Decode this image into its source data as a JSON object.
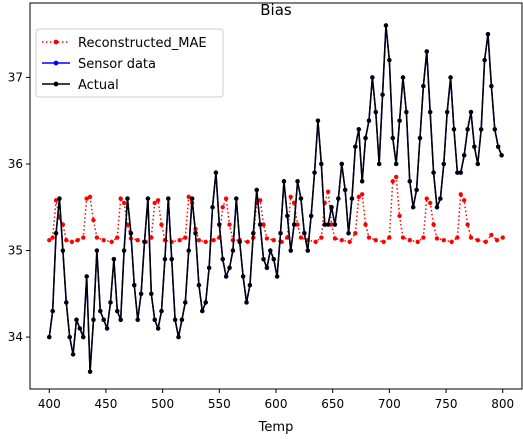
{
  "chart_data": {
    "type": "line",
    "title": "Bias",
    "xlabel": "Temp",
    "ylabel": "",
    "xlim": [
      383,
      817
    ],
    "ylim": [
      33.4,
      37.86
    ],
    "x_ticks": [
      400,
      450,
      500,
      550,
      600,
      650,
      700,
      750,
      800
    ],
    "y_ticks": [
      34,
      35,
      36,
      37
    ],
    "x_tick_labels": [
      "400",
      "450",
      "500",
      "550",
      "600",
      "650",
      "700",
      "750",
      "800"
    ],
    "y_tick_labels": [
      "34",
      "35",
      "36",
      "37"
    ],
    "grid": false,
    "legend": {
      "placement": "top-left"
    },
    "series": [
      {
        "name": "Reconstructed_MAE",
        "color": "#ff0000",
        "style": "dotted",
        "marker": "dot",
        "x": [
          400,
          403,
          406,
          409,
          412,
          415,
          420,
          425,
          430,
          433,
          436,
          439,
          442,
          448,
          455,
          460,
          463,
          466,
          469,
          472,
          478,
          485,
          490,
          493,
          496,
          499,
          502,
          508,
          515,
          520,
          523,
          526,
          529,
          532,
          538,
          545,
          550,
          553,
          556,
          559,
          562,
          568,
          575,
          580,
          583,
          586,
          589,
          592,
          598,
          605,
          610,
          613,
          616,
          619,
          622,
          628,
          635,
          640,
          643,
          646,
          649,
          652,
          658,
          665,
          670,
          673,
          676,
          679,
          682,
          688,
          695,
          700,
          703,
          706,
          709,
          712,
          718,
          725,
          730,
          733,
          736,
          739,
          742,
          748,
          755,
          760,
          763,
          766,
          769,
          772,
          778,
          785,
          790,
          795,
          800
        ],
        "y": [
          35.12,
          35.15,
          35.58,
          35.38,
          35.3,
          35.12,
          35.1,
          35.12,
          35.15,
          35.6,
          35.62,
          35.35,
          35.15,
          35.12,
          35.1,
          35.15,
          35.6,
          35.55,
          35.3,
          35.14,
          35.12,
          35.1,
          35.15,
          35.55,
          35.58,
          35.3,
          35.12,
          35.1,
          35.12,
          35.15,
          35.62,
          35.55,
          35.25,
          35.12,
          35.1,
          35.12,
          35.15,
          35.5,
          35.6,
          35.3,
          35.12,
          35.12,
          35.1,
          35.15,
          35.55,
          35.58,
          35.3,
          35.14,
          35.12,
          35.1,
          35.15,
          35.62,
          35.55,
          35.3,
          35.15,
          35.12,
          35.1,
          35.15,
          35.55,
          35.68,
          35.3,
          35.14,
          35.12,
          35.1,
          35.2,
          35.62,
          35.65,
          35.3,
          35.15,
          35.12,
          35.1,
          35.15,
          35.8,
          35.85,
          35.4,
          35.15,
          35.12,
          35.1,
          35.15,
          35.6,
          35.55,
          35.3,
          35.14,
          35.12,
          35.1,
          35.15,
          35.65,
          35.58,
          35.3,
          35.15,
          35.12,
          35.1,
          35.18,
          35.12,
          35.15
        ]
      },
      {
        "name": "Sensor data",
        "color": "#0000ff",
        "style": "solid",
        "marker": "dot",
        "x": [
          400,
          403,
          406,
          409,
          412,
          415,
          418,
          421,
          424,
          427,
          430,
          433,
          436,
          439,
          442,
          445,
          448,
          451,
          454,
          457,
          460,
          463,
          466,
          469,
          472,
          475,
          478,
          481,
          484,
          487,
          490,
          493,
          496,
          499,
          502,
          505,
          508,
          511,
          514,
          517,
          520,
          523,
          526,
          529,
          532,
          535,
          538,
          541,
          544,
          547,
          550,
          553,
          556,
          559,
          562,
          565,
          568,
          571,
          574,
          577,
          580,
          583,
          586,
          589,
          592,
          595,
          598,
          601,
          604,
          607,
          610,
          613,
          616,
          619,
          622,
          625,
          628,
          631,
          634,
          637,
          640,
          643,
          646,
          649,
          652,
          655,
          658,
          661,
          664,
          667,
          670,
          673,
          676,
          679,
          682,
          685,
          688,
          691,
          694,
          697,
          700,
          703,
          706,
          709,
          712,
          715,
          718,
          721,
          724,
          727,
          730,
          733,
          736,
          739,
          742,
          745,
          748,
          751,
          754,
          757,
          760,
          763,
          766,
          769,
          772,
          775,
          778,
          781,
          784,
          787,
          790,
          793,
          796,
          799
        ],
        "y": [
          34.0,
          34.3,
          35.2,
          35.6,
          35.0,
          34.4,
          34.0,
          33.8,
          34.2,
          34.1,
          34.0,
          34.7,
          33.6,
          34.2,
          35.0,
          34.3,
          34.2,
          34.1,
          34.4,
          34.9,
          34.3,
          34.2,
          35.0,
          35.6,
          35.2,
          34.6,
          34.2,
          34.5,
          35.1,
          35.6,
          34.5,
          34.2,
          34.1,
          34.3,
          34.9,
          35.6,
          34.9,
          34.2,
          34.0,
          34.2,
          34.4,
          35.0,
          35.6,
          35.2,
          34.6,
          34.3,
          34.4,
          34.8,
          35.5,
          35.9,
          35.3,
          34.9,
          34.7,
          34.8,
          35.0,
          35.6,
          35.1,
          34.7,
          34.4,
          34.6,
          35.2,
          35.7,
          35.3,
          34.9,
          34.8,
          35.0,
          34.9,
          34.7,
          35.2,
          35.8,
          35.4,
          35.0,
          35.3,
          35.8,
          35.6,
          35.2,
          35.0,
          35.4,
          35.9,
          36.5,
          36.0,
          35.3,
          35.3,
          35.5,
          35.3,
          35.6,
          36.0,
          35.7,
          35.2,
          35.6,
          36.2,
          36.4,
          35.8,
          36.3,
          36.5,
          37.0,
          36.6,
          36.0,
          36.8,
          37.6,
          37.2,
          36.3,
          36.0,
          36.5,
          37.0,
          36.6,
          35.8,
          35.5,
          35.7,
          36.3,
          36.9,
          37.3,
          36.6,
          35.9,
          35.5,
          35.6,
          36.0,
          36.6,
          37.0,
          36.4,
          35.9,
          35.9,
          36.1,
          36.4,
          36.6,
          36.2,
          36.0,
          36.4,
          37.2,
          37.5,
          36.9,
          36.4,
          36.2,
          36.1
        ]
      },
      {
        "name": "Actual",
        "color": "#000000",
        "style": "solid",
        "marker": "dot",
        "x": [
          400,
          403,
          406,
          409,
          412,
          415,
          418,
          421,
          424,
          427,
          430,
          433,
          436,
          439,
          442,
          445,
          448,
          451,
          454,
          457,
          460,
          463,
          466,
          469,
          472,
          475,
          478,
          481,
          484,
          487,
          490,
          493,
          496,
          499,
          502,
          505,
          508,
          511,
          514,
          517,
          520,
          523,
          526,
          529,
          532,
          535,
          538,
          541,
          544,
          547,
          550,
          553,
          556,
          559,
          562,
          565,
          568,
          571,
          574,
          577,
          580,
          583,
          586,
          589,
          592,
          595,
          598,
          601,
          604,
          607,
          610,
          613,
          616,
          619,
          622,
          625,
          628,
          631,
          634,
          637,
          640,
          643,
          646,
          649,
          652,
          655,
          658,
          661,
          664,
          667,
          670,
          673,
          676,
          679,
          682,
          685,
          688,
          691,
          694,
          697,
          700,
          703,
          706,
          709,
          712,
          715,
          718,
          721,
          724,
          727,
          730,
          733,
          736,
          739,
          742,
          745,
          748,
          751,
          754,
          757,
          760,
          763,
          766,
          769,
          772,
          775,
          778,
          781,
          784,
          787,
          790,
          793,
          796,
          799
        ],
        "y": [
          34.0,
          34.3,
          35.2,
          35.6,
          35.0,
          34.4,
          34.0,
          33.8,
          34.2,
          34.1,
          34.0,
          34.7,
          33.6,
          34.2,
          35.0,
          34.3,
          34.2,
          34.1,
          34.4,
          34.9,
          34.3,
          34.2,
          35.0,
          35.6,
          35.2,
          34.6,
          34.2,
          34.5,
          35.1,
          35.6,
          34.5,
          34.2,
          34.1,
          34.3,
          34.9,
          35.6,
          34.9,
          34.2,
          34.0,
          34.2,
          34.4,
          35.0,
          35.6,
          35.2,
          34.6,
          34.3,
          34.4,
          34.8,
          35.5,
          35.9,
          35.3,
          34.9,
          34.7,
          34.8,
          35.0,
          35.6,
          35.1,
          34.7,
          34.4,
          34.6,
          35.2,
          35.7,
          35.3,
          34.9,
          34.8,
          35.0,
          34.9,
          34.7,
          35.2,
          35.8,
          35.4,
          35.0,
          35.3,
          35.8,
          35.6,
          35.2,
          35.0,
          35.4,
          35.9,
          36.5,
          36.0,
          35.3,
          35.3,
          35.5,
          35.3,
          35.6,
          36.0,
          35.7,
          35.2,
          35.6,
          36.2,
          36.4,
          35.8,
          36.3,
          36.5,
          37.0,
          36.6,
          36.0,
          36.8,
          37.6,
          37.2,
          36.3,
          36.0,
          36.5,
          37.0,
          36.6,
          35.8,
          35.5,
          35.7,
          36.3,
          36.9,
          37.3,
          36.6,
          35.9,
          35.5,
          35.6,
          36.0,
          36.6,
          37.0,
          36.4,
          35.9,
          35.9,
          36.1,
          36.4,
          36.6,
          36.2,
          36.0,
          36.4,
          37.2,
          37.5,
          36.9,
          36.4,
          36.2,
          36.1
        ]
      }
    ]
  }
}
